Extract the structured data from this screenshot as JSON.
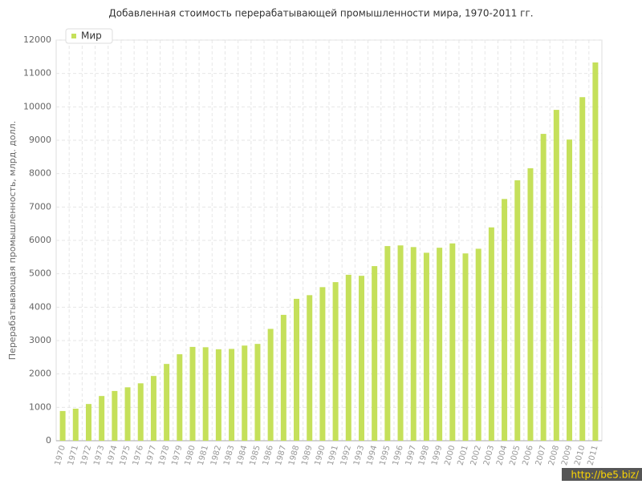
{
  "chart_data": {
    "type": "bar",
    "title": "Добавленная стоимость перерабатывающей промышленности мира, 1970-2011 гг.",
    "y_label": "Перерабатывающая промышленность, млрд. долл.",
    "categories": [
      "1970",
      "1971",
      "1972",
      "1973",
      "1974",
      "1975",
      "1976",
      "1977",
      "1978",
      "1979",
      "1980",
      "1981",
      "1982",
      "1983",
      "1984",
      "1985",
      "1986",
      "1987",
      "1988",
      "1989",
      "1990",
      "1991",
      "1992",
      "1993",
      "1994",
      "1995",
      "1996",
      "1997",
      "1998",
      "1999",
      "2000",
      "2001",
      "2002",
      "2003",
      "2004",
      "2005",
      "2006",
      "2007",
      "2008",
      "2009",
      "2010",
      "2011"
    ],
    "series": [
      {
        "name": "Мир",
        "color": "#c5e05a",
        "values": [
          890,
          960,
          1100,
          1340,
          1490,
          1600,
          1720,
          1940,
          2300,
          2590,
          2810,
          2800,
          2740,
          2750,
          2850,
          2900,
          3350,
          3770,
          4250,
          4360,
          4600,
          4750,
          4970,
          4940,
          5230,
          5830,
          5850,
          5800,
          5630,
          5780,
          5910,
          5610,
          5750,
          6390,
          7240,
          7800,
          8160,
          9190,
          9910,
          9020,
          10290,
          11330
        ]
      }
    ],
    "ylim": [
      0,
      12000
    ],
    "yticks": [
      0,
      1000,
      2000,
      3000,
      4000,
      5000,
      6000,
      7000,
      8000,
      9000,
      10000,
      11000,
      12000
    ],
    "grid": true,
    "legend": "top-left"
  },
  "watermark": "http://be5.biz/"
}
